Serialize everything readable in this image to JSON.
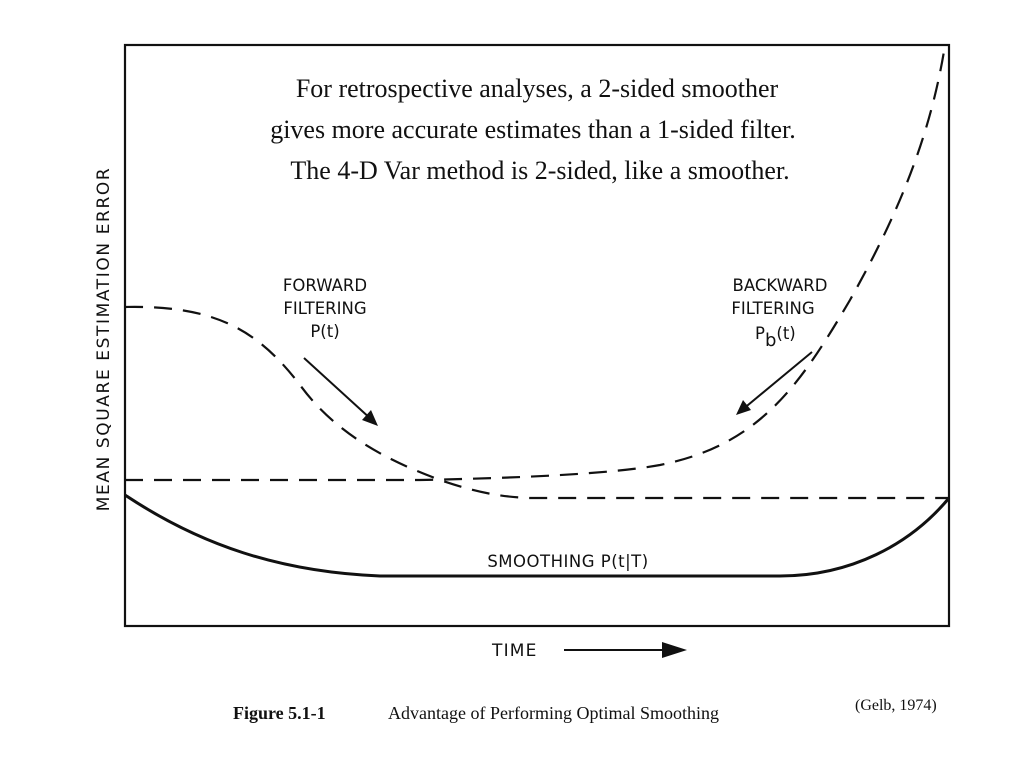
{
  "annotation": {
    "lines": [
      "For retrospective analyses, a 2-sided smoother",
      "gives more accurate estimates than a 1-sided filter.",
      "The 4-D Var method is 2-sided, like a smoother."
    ]
  },
  "axes": {
    "ylabel": "MEAN SQUARE ESTIMATION ERROR",
    "xlabel": "TIME"
  },
  "curves": {
    "forward": {
      "lines": [
        "FORWARD",
        "FILTERING",
        "P(t)"
      ],
      "style": "dashed"
    },
    "backward": {
      "lines": [
        "BACKWARD",
        "FILTERING"
      ],
      "symbol": "P",
      "subscript": "b",
      "arg": "(t)",
      "style": "dashed"
    },
    "smoothing": {
      "label": "SMOOTHING P(t|T)",
      "style": "solid"
    }
  },
  "caption": {
    "number": "Figure 5.1-1",
    "text": "Advantage of Performing Optimal Smoothing"
  },
  "citation": "(Gelb, 1974)",
  "colors": {
    "ink": "#111111",
    "background": "#ffffff"
  }
}
